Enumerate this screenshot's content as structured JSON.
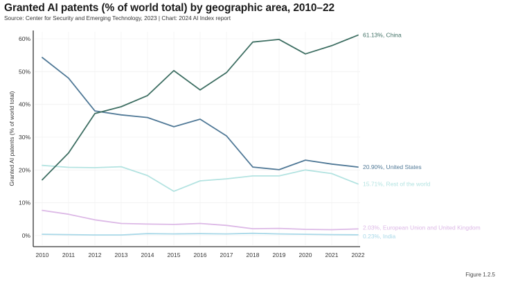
{
  "header": {
    "title": "Granted AI patents (% of world total) by geographic area, 2010–22",
    "subtitle": "Source: Center for Security and Emerging Technology, 2023 | Chart: 2024 AI Index report"
  },
  "footer": {
    "figure_label": "Figure 1.2.5"
  },
  "chart_data": {
    "type": "line",
    "title": "Granted AI patents (% of world total) by geographic area, 2010–22",
    "xlabel": "",
    "ylabel": "Granted AI patents (% of world total)",
    "x": [
      2010,
      2011,
      2012,
      2013,
      2014,
      2015,
      2016,
      2017,
      2018,
      2019,
      2020,
      2021,
      2022
    ],
    "x_tick_labels": [
      "2010",
      "2011",
      "2012",
      "2013",
      "2014",
      "2015",
      "2016",
      "2017",
      "2018",
      "2019",
      "2020",
      "2021",
      "2022"
    ],
    "ylim": [
      0,
      60
    ],
    "y_ticks": [
      0,
      10,
      20,
      30,
      40,
      50,
      60
    ],
    "y_tick_labels": [
      "0%",
      "10%",
      "20%",
      "30%",
      "40%",
      "50%",
      "60%"
    ],
    "grid": true,
    "legend": "end-of-line labels (right)",
    "series": [
      {
        "name": "China",
        "color": "#3d6e62",
        "end_label": "61.13%, China",
        "values": [
          17.0,
          25.2,
          37.2,
          39.3,
          42.7,
          50.3,
          44.4,
          49.7,
          59.0,
          59.8,
          55.4,
          57.9,
          61.13
        ]
      },
      {
        "name": "United States",
        "color": "#4f7896",
        "end_label": "20.90%, United States",
        "values": [
          54.3,
          48.0,
          38.0,
          36.8,
          36.0,
          33.2,
          35.5,
          30.4,
          20.9,
          20.1,
          23.0,
          21.8,
          20.9
        ]
      },
      {
        "name": "Rest of the world",
        "color": "#b3e3e1",
        "end_label": "15.71%, Rest of the world",
        "values": [
          21.4,
          20.8,
          20.7,
          21.0,
          18.3,
          13.5,
          16.7,
          17.3,
          18.2,
          18.2,
          20.0,
          18.9,
          15.71
        ]
      },
      {
        "name": "European Union and United Kingdom",
        "color": "#dcb8e6",
        "end_label": "2.03%, European Union and United Kingdom",
        "values": [
          7.7,
          6.5,
          4.8,
          3.7,
          3.5,
          3.4,
          3.7,
          3.1,
          2.1,
          2.2,
          1.9,
          1.8,
          2.03
        ]
      },
      {
        "name": "India",
        "color": "#a8d8e8",
        "end_label": "0.23%, India",
        "values": [
          0.4,
          0.3,
          0.2,
          0.2,
          0.6,
          0.5,
          0.6,
          0.5,
          0.7,
          0.5,
          0.4,
          0.3,
          0.23
        ]
      }
    ]
  }
}
